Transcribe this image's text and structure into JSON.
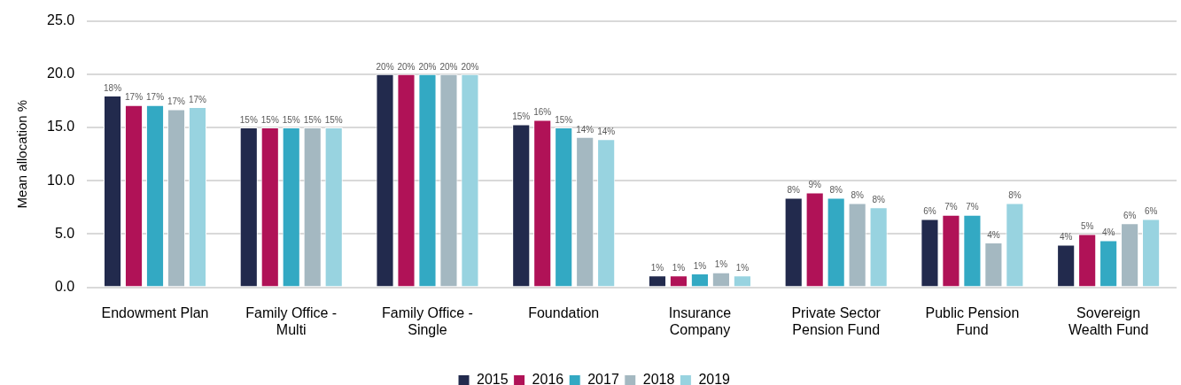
{
  "chart_data": {
    "type": "bar",
    "ylabel": "Mean allocation %",
    "categories": [
      "Endowment Plan",
      "Family Office - Multi",
      "Family Office - Single",
      "Foundation",
      "Insurance Company",
      "Private Sector Pension Fund",
      "Public Pension Fund",
      "Sovereign Wealth Fund"
    ],
    "series": [
      {
        "name": "2015",
        "color": "#222a4d",
        "values": [
          18.0,
          15.0,
          20.0,
          15.3,
          1.1,
          8.4,
          6.4,
          4.0
        ],
        "value_labels": [
          "18%",
          "15%",
          "20%",
          "15%",
          "1%",
          "8%",
          "6%",
          "4%"
        ]
      },
      {
        "name": "2016",
        "color": "#b01257",
        "values": [
          17.1,
          15.0,
          20.0,
          15.7,
          1.1,
          8.9,
          6.8,
          5.0
        ],
        "value_labels": [
          "17%",
          "15%",
          "20%",
          "16%",
          "1%",
          "9%",
          "7%",
          "5%"
        ]
      },
      {
        "name": "2017",
        "color": "#33a9c3",
        "values": [
          17.1,
          15.0,
          20.0,
          15.0,
          1.3,
          8.4,
          6.8,
          4.4
        ],
        "value_labels": [
          "17%",
          "15%",
          "20%",
          "15%",
          "1%",
          "8%",
          "7%",
          "4%"
        ]
      },
      {
        "name": "2018",
        "color": "#a4b8c1",
        "values": [
          16.7,
          15.0,
          20.0,
          14.1,
          1.4,
          7.9,
          4.2,
          6.0
        ],
        "value_labels": [
          "17%",
          "15%",
          "20%",
          "14%",
          "1%",
          "8%",
          "4%",
          "6%"
        ]
      },
      {
        "name": "2019",
        "color": "#98d3e0",
        "values": [
          16.9,
          15.0,
          20.0,
          13.9,
          1.1,
          7.5,
          7.9,
          6.4
        ],
        "value_labels": [
          "17%",
          "15%",
          "20%",
          "14%",
          "1%",
          "8%",
          "8%",
          "6%"
        ]
      }
    ],
    "ylim": [
      0,
      25
    ],
    "yticks": [
      {
        "value": 0,
        "label": "0.0"
      },
      {
        "value": 5,
        "label": "5.0"
      },
      {
        "value": 10,
        "label": "10.0"
      },
      {
        "value": 15,
        "label": "15.0"
      },
      {
        "value": 20,
        "label": "20.0"
      },
      {
        "value": 25,
        "label": "25.0"
      }
    ],
    "grid": "y",
    "legend": "bottom"
  }
}
